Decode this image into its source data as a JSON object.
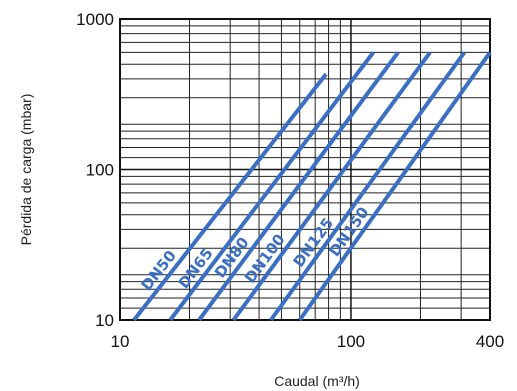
{
  "chart_data": {
    "type": "line",
    "xscale": "log",
    "yscale": "log",
    "xlim": [
      10,
      400
    ],
    "ylim": [
      10,
      1000
    ],
    "xlabel": "Caudal (m³/h)",
    "ylabel": "Pérdida de carga (mbar)",
    "xticks": [
      {
        "value": 10,
        "label": "10"
      },
      {
        "value": 100,
        "label": "100"
      },
      {
        "value": 400,
        "label": "400"
      }
    ],
    "yticks": [
      {
        "value": 10,
        "label": "10"
      },
      {
        "value": 100,
        "label": "100"
      },
      {
        "value": 1000,
        "label": "1000"
      }
    ],
    "grid": true,
    "grid_minor_x": [
      20,
      30,
      40,
      50,
      60,
      70,
      80,
      90,
      200,
      300
    ],
    "grid_minor_y": [
      12,
      14,
      16,
      18,
      20,
      30,
      40,
      50,
      60,
      70,
      80,
      90,
      120,
      140,
      160,
      180,
      200,
      300,
      400,
      500,
      600,
      700,
      800,
      900
    ],
    "line_color": "#3a6fc4",
    "series": [
      {
        "name": "DN50",
        "points": [
          [
            11.5,
            10
          ],
          [
            78,
            430
          ]
        ]
      },
      {
        "name": "DN65",
        "points": [
          [
            16.5,
            10
          ],
          [
            125,
            600
          ]
        ]
      },
      {
        "name": "DN80",
        "points": [
          [
            22,
            10
          ],
          [
            160,
            600
          ]
        ]
      },
      {
        "name": "DN100",
        "points": [
          [
            31,
            10
          ],
          [
            220,
            600
          ]
        ]
      },
      {
        "name": "DN125",
        "points": [
          [
            45,
            10
          ],
          [
            310,
            600
          ]
        ]
      },
      {
        "name": "DN150",
        "points": [
          [
            60,
            10
          ],
          [
            400,
            600
          ]
        ]
      }
    ]
  }
}
